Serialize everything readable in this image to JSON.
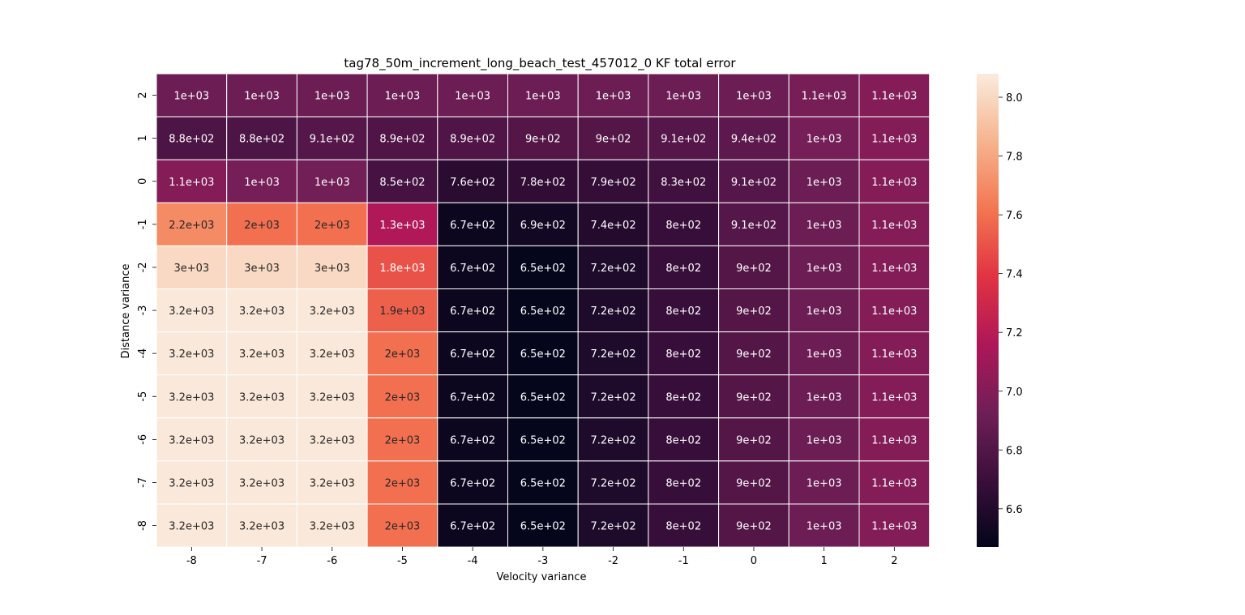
{
  "chart_data": {
    "type": "heatmap",
    "title": "tag78_50m_increment_long_beach_test_457012_0 KF total error",
    "xlabel": "Velocity variance",
    "ylabel": "Distance variance",
    "x_categories": [
      "-8",
      "-7",
      "-6",
      "-5",
      "-4",
      "-3",
      "-2",
      "-1",
      "0",
      "1",
      "2"
    ],
    "y_categories": [
      "2",
      "1",
      "0",
      "-1",
      "-2",
      "-3",
      "-4",
      "-5",
      "-6",
      "-7",
      "-8"
    ],
    "cell_labels": [
      [
        "1e+03",
        "1e+03",
        "1e+03",
        "1e+03",
        "1e+03",
        "1e+03",
        "1e+03",
        "1e+03",
        "1e+03",
        "1.1e+03",
        "1.1e+03"
      ],
      [
        "8.8e+02",
        "8.8e+02",
        "9.1e+02",
        "8.9e+02",
        "8.9e+02",
        "9e+02",
        "9e+02",
        "9.1e+02",
        "9.4e+02",
        "1e+03",
        "1.1e+03"
      ],
      [
        "1.1e+03",
        "1e+03",
        "1e+03",
        "8.5e+02",
        "7.6e+02",
        "7.8e+02",
        "7.9e+02",
        "8.3e+02",
        "9.1e+02",
        "1e+03",
        "1.1e+03"
      ],
      [
        "2.2e+03",
        "2e+03",
        "2e+03",
        "1.3e+03",
        "6.7e+02",
        "6.9e+02",
        "7.4e+02",
        "8e+02",
        "9.1e+02",
        "1e+03",
        "1.1e+03"
      ],
      [
        "3e+03",
        "3e+03",
        "3e+03",
        "1.8e+03",
        "6.7e+02",
        "6.5e+02",
        "7.2e+02",
        "8e+02",
        "9e+02",
        "1e+03",
        "1.1e+03"
      ],
      [
        "3.2e+03",
        "3.2e+03",
        "3.2e+03",
        "1.9e+03",
        "6.7e+02",
        "6.5e+02",
        "7.2e+02",
        "8e+02",
        "9e+02",
        "1e+03",
        "1.1e+03"
      ],
      [
        "3.2e+03",
        "3.2e+03",
        "3.2e+03",
        "2e+03",
        "6.7e+02",
        "6.5e+02",
        "7.2e+02",
        "8e+02",
        "9e+02",
        "1e+03",
        "1.1e+03"
      ],
      [
        "3.2e+03",
        "3.2e+03",
        "3.2e+03",
        "2e+03",
        "6.7e+02",
        "6.5e+02",
        "7.2e+02",
        "8e+02",
        "9e+02",
        "1e+03",
        "1.1e+03"
      ],
      [
        "3.2e+03",
        "3.2e+03",
        "3.2e+03",
        "2e+03",
        "6.7e+02",
        "6.5e+02",
        "7.2e+02",
        "8e+02",
        "9e+02",
        "1e+03",
        "1.1e+03"
      ],
      [
        "3.2e+03",
        "3.2e+03",
        "3.2e+03",
        "2e+03",
        "6.7e+02",
        "6.5e+02",
        "7.2e+02",
        "8e+02",
        "9e+02",
        "1e+03",
        "1.1e+03"
      ],
      [
        "3.2e+03",
        "3.2e+03",
        "3.2e+03",
        "2e+03",
        "6.7e+02",
        "6.5e+02",
        "7.2e+02",
        "8e+02",
        "9e+02",
        "1e+03",
        "1.1e+03"
      ]
    ],
    "values": [
      [
        1000,
        1000,
        1000,
        1000,
        1000,
        1000,
        1000,
        1000,
        1000,
        1050,
        1100
      ],
      [
        880,
        880,
        910,
        890,
        890,
        900,
        900,
        910,
        940,
        1040,
        1100
      ],
      [
        1100,
        1040,
        1030,
        850,
        760,
        780,
        790,
        830,
        910,
        1000,
        1100
      ],
      [
        2200,
        2000,
        2000,
        1300,
        670,
        690,
        740,
        800,
        910,
        1000,
        1100
      ],
      [
        3000,
        3000,
        3000,
        1800,
        670,
        650,
        720,
        800,
        900,
        1000,
        1100
      ],
      [
        3200,
        3200,
        3200,
        1900,
        670,
        650,
        720,
        800,
        900,
        1000,
        1100
      ],
      [
        3200,
        3200,
        3200,
        2000,
        670,
        650,
        720,
        800,
        900,
        1000,
        1100
      ],
      [
        3200,
        3200,
        3200,
        2000,
        670,
        650,
        720,
        800,
        900,
        1000,
        1100
      ],
      [
        3200,
        3200,
        3200,
        2000,
        670,
        650,
        720,
        800,
        900,
        1000,
        1100
      ],
      [
        3200,
        3200,
        3200,
        2000,
        670,
        650,
        720,
        800,
        900,
        1000,
        1100
      ],
      [
        3200,
        3200,
        3200,
        2000,
        670,
        650,
        720,
        800,
        900,
        1000,
        1100
      ]
    ],
    "colorbar": {
      "scale": "natural log of value",
      "range": [
        6.47,
        8.08
      ],
      "ticks": [
        "6.6",
        "6.8",
        "7.0",
        "7.2",
        "7.4",
        "7.6",
        "7.8",
        "8.0"
      ],
      "colormap": [
        "#03051a",
        "#3b0f3b",
        "#701f57",
        "#ae1759",
        "#e13342",
        "#f37651",
        "#f6b48e",
        "#faebdd"
      ]
    },
    "grid": true
  }
}
